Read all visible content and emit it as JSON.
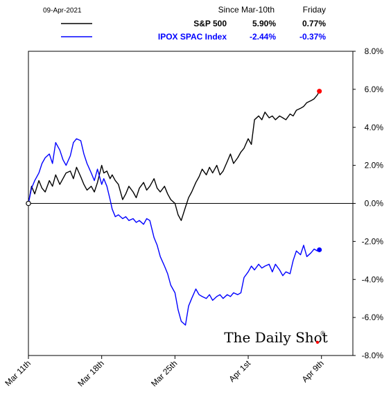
{
  "chart_data": {
    "type": "line",
    "date_label": "09-Apr-2021",
    "column_headers": [
      "Since Mar-10th",
      "Friday"
    ],
    "series": [
      {
        "name": "S&P 500",
        "color": "#000000",
        "since_label": "5.90%",
        "friday_label": "0.77%",
        "points": [
          [
            0,
            0.0
          ],
          [
            0.3,
            0.9
          ],
          [
            0.6,
            0.5
          ],
          [
            1.0,
            1.2
          ],
          [
            1.3,
            0.8
          ],
          [
            1.6,
            0.6
          ],
          [
            2.0,
            1.2
          ],
          [
            2.3,
            0.9
          ],
          [
            2.6,
            1.5
          ],
          [
            3.0,
            1.0
          ],
          [
            3.3,
            1.3
          ],
          [
            3.6,
            1.6
          ],
          [
            4.0,
            1.7
          ],
          [
            4.3,
            1.3
          ],
          [
            4.6,
            1.9
          ],
          [
            5.0,
            1.4
          ],
          [
            5.3,
            1.0
          ],
          [
            5.6,
            0.7
          ],
          [
            6.0,
            0.9
          ],
          [
            6.3,
            0.6
          ],
          [
            6.6,
            1.1
          ],
          [
            7.0,
            2.0
          ],
          [
            7.2,
            1.6
          ],
          [
            7.5,
            1.7
          ],
          [
            7.8,
            1.3
          ],
          [
            8.0,
            1.5
          ],
          [
            8.3,
            1.2
          ],
          [
            8.6,
            1.0
          ],
          [
            9.0,
            0.2
          ],
          [
            9.3,
            0.5
          ],
          [
            9.6,
            0.9
          ],
          [
            10.0,
            0.6
          ],
          [
            10.3,
            0.3
          ],
          [
            10.6,
            0.8
          ],
          [
            11.0,
            1.1
          ],
          [
            11.3,
            0.7
          ],
          [
            11.6,
            0.9
          ],
          [
            12.0,
            1.3
          ],
          [
            12.3,
            0.8
          ],
          [
            12.6,
            0.6
          ],
          [
            13.0,
            0.9
          ],
          [
            13.3,
            0.5
          ],
          [
            13.6,
            0.2
          ],
          [
            14.0,
            0.0
          ],
          [
            14.3,
            -0.6
          ],
          [
            14.6,
            -0.9
          ],
          [
            15.0,
            -0.2
          ],
          [
            15.3,
            0.3
          ],
          [
            15.6,
            0.6
          ],
          [
            16.0,
            1.1
          ],
          [
            16.3,
            1.4
          ],
          [
            16.6,
            1.8
          ],
          [
            17.0,
            1.5
          ],
          [
            17.3,
            1.9
          ],
          [
            17.6,
            1.6
          ],
          [
            18.0,
            2.0
          ],
          [
            18.3,
            1.5
          ],
          [
            18.6,
            1.7
          ],
          [
            19.0,
            2.2
          ],
          [
            19.3,
            2.6
          ],
          [
            19.6,
            2.1
          ],
          [
            20.0,
            2.4
          ],
          [
            20.3,
            2.7
          ],
          [
            20.6,
            2.9
          ],
          [
            21.0,
            3.4
          ],
          [
            21.3,
            3.1
          ],
          [
            21.6,
            4.4
          ],
          [
            22.0,
            4.6
          ],
          [
            22.3,
            4.4
          ],
          [
            22.6,
            4.8
          ],
          [
            23.0,
            4.5
          ],
          [
            23.3,
            4.6
          ],
          [
            23.6,
            4.4
          ],
          [
            24.0,
            4.6
          ],
          [
            24.3,
            4.5
          ],
          [
            24.6,
            4.4
          ],
          [
            25.0,
            4.7
          ],
          [
            25.3,
            4.6
          ],
          [
            25.6,
            4.9
          ],
          [
            26.0,
            5.0
          ],
          [
            26.3,
            5.1
          ],
          [
            26.6,
            5.3
          ],
          [
            27.0,
            5.4
          ],
          [
            27.3,
            5.5
          ],
          [
            27.6,
            5.7
          ],
          [
            27.8,
            5.9
          ]
        ]
      },
      {
        "name": "IPOX SPAC Index",
        "color": "#0000ff",
        "since_label": "-2.44%",
        "friday_label": "-0.37%",
        "points": [
          [
            0,
            0.0
          ],
          [
            0.3,
            0.8
          ],
          [
            0.6,
            1.2
          ],
          [
            1.0,
            1.6
          ],
          [
            1.3,
            2.1
          ],
          [
            1.6,
            2.4
          ],
          [
            2.0,
            2.6
          ],
          [
            2.3,
            2.1
          ],
          [
            2.6,
            3.2
          ],
          [
            3.0,
            2.8
          ],
          [
            3.3,
            2.3
          ],
          [
            3.6,
            2.0
          ],
          [
            4.0,
            2.5
          ],
          [
            4.3,
            3.2
          ],
          [
            4.6,
            3.4
          ],
          [
            5.0,
            3.3
          ],
          [
            5.3,
            2.6
          ],
          [
            5.6,
            2.1
          ],
          [
            6.0,
            1.6
          ],
          [
            6.3,
            1.2
          ],
          [
            6.6,
            1.8
          ],
          [
            7.0,
            1.0
          ],
          [
            7.2,
            1.3
          ],
          [
            7.5,
            0.9
          ],
          [
            7.8,
            0.2
          ],
          [
            8.0,
            -0.3
          ],
          [
            8.3,
            -0.7
          ],
          [
            8.6,
            -0.6
          ],
          [
            9.0,
            -0.8
          ],
          [
            9.3,
            -0.7
          ],
          [
            9.6,
            -0.9
          ],
          [
            10.0,
            -0.8
          ],
          [
            10.3,
            -1.0
          ],
          [
            10.6,
            -0.9
          ],
          [
            11.0,
            -1.1
          ],
          [
            11.3,
            -0.8
          ],
          [
            11.6,
            -0.9
          ],
          [
            12.0,
            -1.8
          ],
          [
            12.3,
            -2.2
          ],
          [
            12.6,
            -2.8
          ],
          [
            13.0,
            -3.3
          ],
          [
            13.3,
            -3.7
          ],
          [
            13.6,
            -4.3
          ],
          [
            14.0,
            -4.7
          ],
          [
            14.3,
            -5.6
          ],
          [
            14.6,
            -6.2
          ],
          [
            15.0,
            -6.4
          ],
          [
            15.3,
            -5.4
          ],
          [
            15.6,
            -5.0
          ],
          [
            16.0,
            -4.5
          ],
          [
            16.3,
            -4.8
          ],
          [
            16.6,
            -4.9
          ],
          [
            17.0,
            -5.0
          ],
          [
            17.3,
            -4.8
          ],
          [
            17.6,
            -5.1
          ],
          [
            18.0,
            -4.9
          ],
          [
            18.3,
            -4.8
          ],
          [
            18.6,
            -5.0
          ],
          [
            19.0,
            -4.8
          ],
          [
            19.3,
            -4.9
          ],
          [
            19.6,
            -4.7
          ],
          [
            20.0,
            -4.8
          ],
          [
            20.3,
            -4.7
          ],
          [
            20.6,
            -3.9
          ],
          [
            21.0,
            -3.6
          ],
          [
            21.3,
            -3.3
          ],
          [
            21.6,
            -3.5
          ],
          [
            22.0,
            -3.2
          ],
          [
            22.3,
            -3.4
          ],
          [
            22.6,
            -3.3
          ],
          [
            23.0,
            -3.2
          ],
          [
            23.3,
            -3.6
          ],
          [
            23.6,
            -3.2
          ],
          [
            24.0,
            -3.5
          ],
          [
            24.3,
            -3.8
          ],
          [
            24.6,
            -3.6
          ],
          [
            25.0,
            -3.7
          ],
          [
            25.3,
            -3.0
          ],
          [
            25.6,
            -2.5
          ],
          [
            26.0,
            -2.7
          ],
          [
            26.3,
            -2.2
          ],
          [
            26.6,
            -2.8
          ],
          [
            27.0,
            -2.6
          ],
          [
            27.3,
            -2.4
          ],
          [
            27.6,
            -2.5
          ],
          [
            27.8,
            -2.44
          ]
        ]
      }
    ],
    "x_ticks": [
      {
        "x": 0,
        "label": "Mar 11th"
      },
      {
        "x": 7,
        "label": "Mar 18th"
      },
      {
        "x": 14,
        "label": "Mar 25th"
      },
      {
        "x": 21,
        "label": "Apr 1st"
      },
      {
        "x": 28,
        "label": "Apr 9th"
      }
    ],
    "xlim": [
      0,
      31
    ],
    "ylim": [
      -8,
      8
    ],
    "y_ticks": [
      8,
      6,
      4,
      2,
      0,
      -2,
      -4,
      -6,
      -8
    ],
    "y_tick_labels": [
      "8.0%",
      "6.0%",
      "4.0%",
      "2.0%",
      "0.0%",
      "-2.0%",
      "-4.0%",
      "-6.0%",
      "-8.0%"
    ],
    "zero_line": true,
    "grid": false,
    "end_marker_color": "#ff0000",
    "brand": "The Daily Shot",
    "brand_mark": "®"
  }
}
